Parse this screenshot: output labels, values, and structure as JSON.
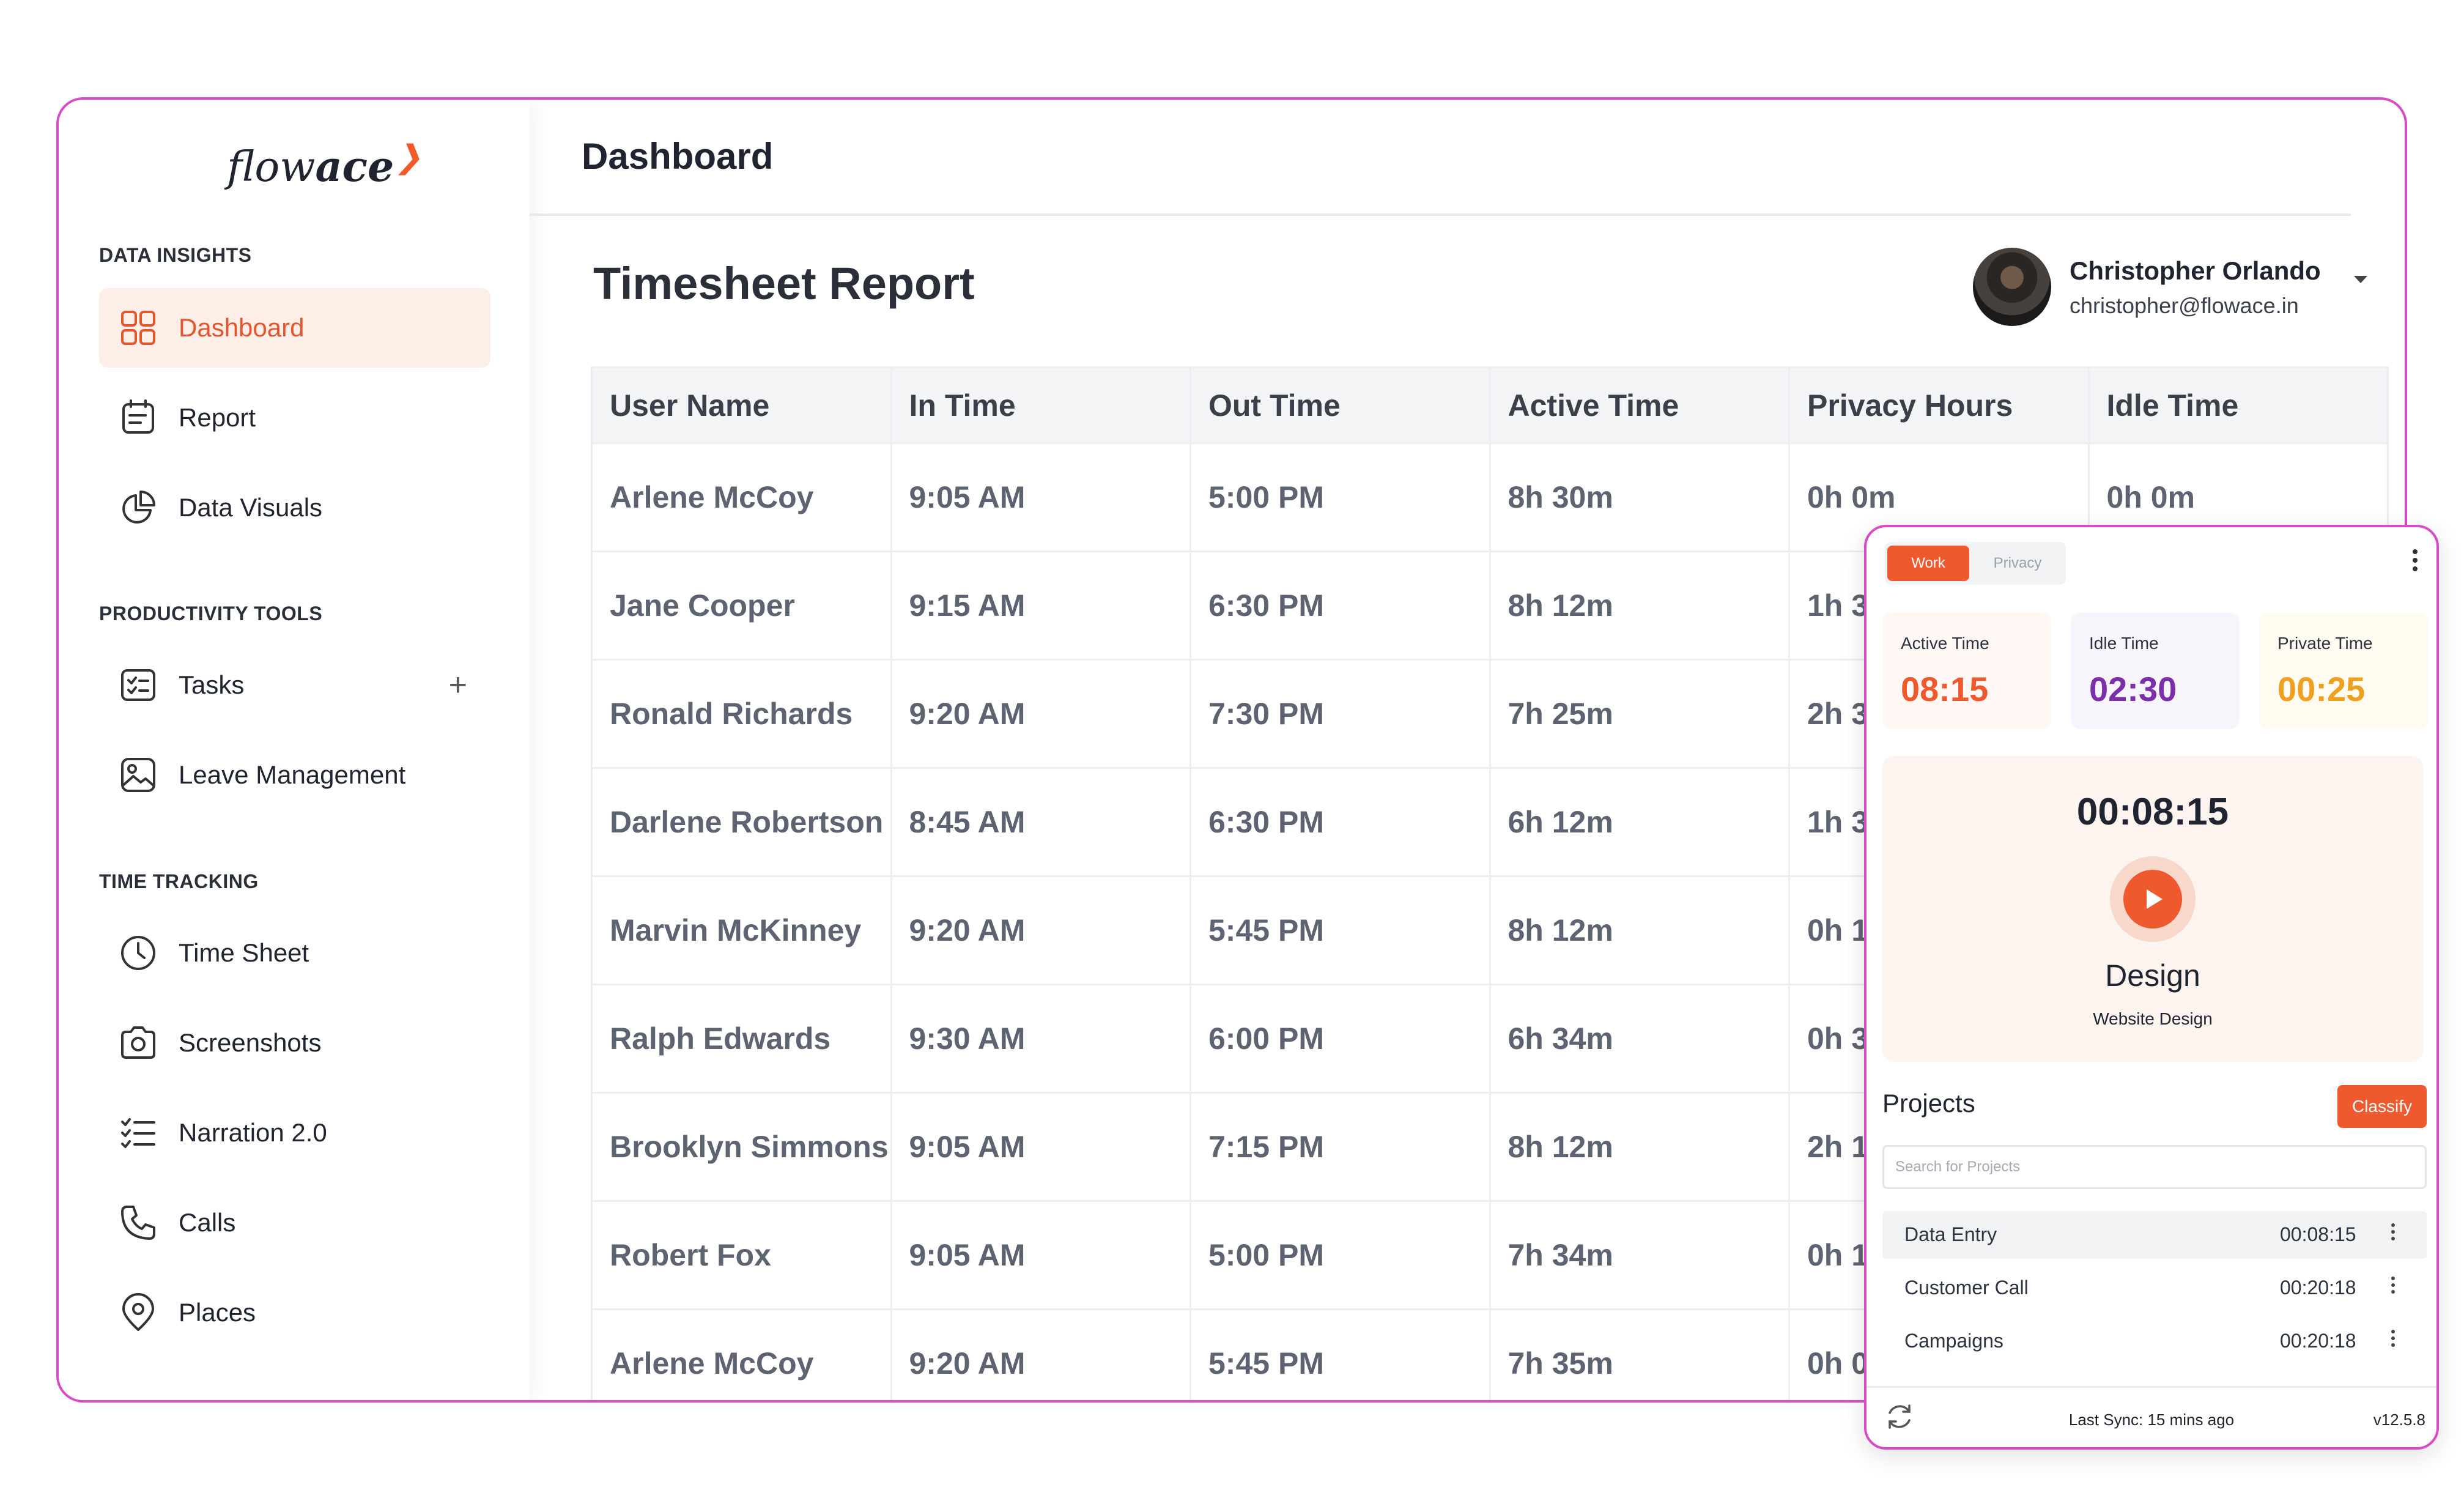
{
  "app": {
    "logo_text_light": "flow",
    "logo_text_bold": "ace",
    "accent": "#ee5a2e",
    "frame_border": "#d94bc4"
  },
  "sidebar": {
    "sections": [
      {
        "label": "DATA INSIGHTS"
      },
      {
        "label": "PRODUCTIVITY TOOLS"
      },
      {
        "label": "TIME TRACKING"
      }
    ],
    "items": [
      {
        "label": "Dashboard",
        "icon": "grid-icon",
        "active": true
      },
      {
        "label": "Report",
        "icon": "report-icon"
      },
      {
        "label": "Data Visuals",
        "icon": "pie-chart-icon"
      },
      {
        "label": "Tasks",
        "icon": "checklist-icon"
      },
      {
        "label": "Leave Management",
        "icon": "image-icon"
      },
      {
        "label": "Time Sheet",
        "icon": "clock-icon"
      },
      {
        "label": "Screenshots",
        "icon": "camera-icon"
      },
      {
        "label": "Narration 2.0",
        "icon": "list-check-icon"
      },
      {
        "label": "Calls",
        "icon": "phone-icon"
      },
      {
        "label": "Places",
        "icon": "location-pin-icon"
      }
    ],
    "tasks_add": "+"
  },
  "header": {
    "title": "Dashboard"
  },
  "report": {
    "title": "Timesheet Report",
    "user": {
      "name": "Christopher Orlando",
      "email": "christopher@flowace.in"
    },
    "columns": [
      "User Name",
      "In Time",
      "Out Time",
      "Active Time",
      "Privacy Hours",
      "Idle Time"
    ],
    "rows": [
      [
        "Arlene McCoy",
        "9:05 AM",
        "5:00 PM",
        "8h 30m",
        "0h 0m",
        "0h 0m"
      ],
      [
        "Jane Cooper",
        "9:15 AM",
        "6:30 PM",
        "8h 12m",
        "1h 3",
        ""
      ],
      [
        "Ronald Richards",
        "9:20 AM",
        "7:30 PM",
        "7h 25m",
        "2h 3",
        ""
      ],
      [
        "Darlene Robertson",
        "8:45 AM",
        "6:30 PM",
        "6h 12m",
        "1h 3",
        ""
      ],
      [
        "Marvin McKinney",
        "9:20 AM",
        "5:45 PM",
        "8h 12m",
        "0h 1",
        ""
      ],
      [
        "Ralph Edwards",
        "9:30 AM",
        "6:00 PM",
        "6h 34m",
        "0h 3",
        ""
      ],
      [
        "Brooklyn Simmons",
        "9:05 AM",
        "7:15 PM",
        "8h 12m",
        "2h 1",
        ""
      ],
      [
        "Robert Fox",
        "9:05 AM",
        "5:00 PM",
        "7h 34m",
        "0h 1",
        ""
      ],
      [
        "Arlene McCoy",
        "9:20 AM",
        "5:45 PM",
        "7h 35m",
        "0h 0",
        ""
      ]
    ]
  },
  "widget": {
    "toggle": {
      "on": "Work",
      "off": "Privacy"
    },
    "stats": [
      {
        "label": "Active Time",
        "value": "08:15",
        "color": "#ee5a2e",
        "bg": "#fff7f3"
      },
      {
        "label": "Idle Time",
        "value": "02:30",
        "color": "#7b2fa8",
        "bg": "#f7f5fb"
      },
      {
        "label": "Private Time",
        "value": "00:25",
        "color": "#f0a020",
        "bg": "#fffbf0"
      }
    ],
    "timer": "00:08:15",
    "task_name": "Design",
    "task_sub": "Website Design",
    "projects_title": "Projects",
    "classify_label": "Classify",
    "search_placeholder": "Search for Projects",
    "projects": [
      {
        "name": "Data Entry",
        "time": "00:08:15"
      },
      {
        "name": "Customer Call",
        "time": "00:20:18"
      },
      {
        "name": "Campaigns",
        "time": "00:20:18"
      }
    ],
    "sync_text": "Last Sync: 15 mins ago",
    "version": "v12.5.8"
  }
}
